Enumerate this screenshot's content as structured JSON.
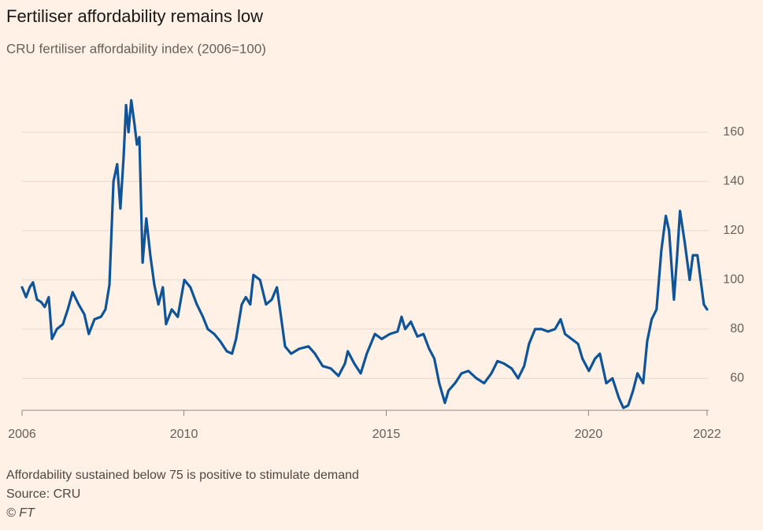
{
  "chart_data": {
    "type": "line",
    "title": "Fertiliser affordability remains low",
    "subtitle": "CRU fertiliser affordability index (2006=100)",
    "notes": [
      "Affordability sustained below 75 is positive to stimulate demand",
      "Source: CRU",
      "© FT"
    ],
    "xlim": [
      2006,
      2022.93
    ],
    "xticks": [
      2006,
      2010,
      2015,
      2020,
      {
        "value": 2022.93,
        "label": "2022"
      }
    ],
    "ylim": [
      47,
      175
    ],
    "yticks": [
      60,
      80,
      100,
      120,
      140,
      160
    ],
    "grid": true,
    "series": [
      {
        "name": "CRU fertiliser affordability index",
        "color": "#0f5499",
        "x": [
          2006.0,
          2006.1,
          2006.19,
          2006.27,
          2006.37,
          2006.47,
          2006.56,
          2006.66,
          2006.74,
          2006.86,
          2007.01,
          2007.13,
          2007.25,
          2007.4,
          2007.54,
          2007.65,
          2007.79,
          2007.95,
          2008.06,
          2008.16,
          2008.26,
          2008.35,
          2008.43,
          2008.51,
          2008.57,
          2008.63,
          2008.7,
          2008.78,
          2008.84,
          2008.9,
          2008.98,
          2009.07,
          2009.17,
          2009.27,
          2009.37,
          2009.48,
          2009.56,
          2009.7,
          2009.85,
          2010.01,
          2010.16,
          2010.32,
          2010.47,
          2010.59,
          2010.75,
          2010.9,
          2011.06,
          2011.19,
          2011.29,
          2011.43,
          2011.53,
          2011.64,
          2011.72,
          2011.88,
          2012.03,
          2012.17,
          2012.3,
          2012.4,
          2012.5,
          2012.65,
          2012.85,
          2013.08,
          2013.24,
          2013.43,
          2013.63,
          2013.82,
          2013.98,
          2014.05,
          2014.21,
          2014.37,
          2014.52,
          2014.72,
          2014.89,
          2015.09,
          2015.28,
          2015.38,
          2015.47,
          2015.61,
          2015.77,
          2015.92,
          2016.06,
          2016.19,
          2016.31,
          2016.45,
          2016.54,
          2016.7,
          2016.86,
          2017.03,
          2017.23,
          2017.42,
          2017.6,
          2017.75,
          2017.91,
          2018.1,
          2018.26,
          2018.41,
          2018.53,
          2018.68,
          2018.84,
          2019.0,
          2019.17,
          2019.31,
          2019.42,
          2019.58,
          2019.74,
          2019.85,
          2020.01,
          2020.16,
          2020.28,
          2020.44,
          2020.59,
          2020.75,
          2020.86,
          2020.98,
          2021.1,
          2021.21,
          2021.35,
          2021.45,
          2021.56,
          2021.68,
          2021.8,
          2021.91,
          2021.99,
          2022.11,
          2022.19,
          2022.26,
          2022.38,
          2022.5,
          2022.58,
          2022.69,
          2022.77,
          2022.85,
          2022.93
        ],
        "values": [
          97,
          93,
          97,
          99,
          92,
          91,
          89,
          93,
          76,
          80,
          82,
          88,
          95,
          90,
          86,
          78,
          84,
          85,
          88,
          98,
          140,
          147,
          129,
          150,
          171,
          160,
          173,
          163,
          155,
          158,
          107,
          125,
          110,
          98,
          90,
          97,
          82,
          88,
          85,
          100,
          97,
          90,
          85,
          80,
          78,
          75,
          71,
          70,
          76,
          90,
          93,
          90,
          102,
          100,
          90,
          92,
          97,
          85,
          73,
          70,
          72,
          73,
          70,
          65,
          64,
          61,
          66,
          71,
          66,
          62,
          70,
          78,
          76,
          78,
          79,
          85,
          80,
          83,
          77,
          78,
          72,
          68,
          58,
          50,
          55,
          58,
          62,
          63,
          60,
          58,
          62,
          67,
          66,
          64,
          60,
          65,
          74,
          80,
          80,
          79,
          80,
          84,
          78,
          76,
          74,
          68,
          63,
          68,
          70,
          58,
          60,
          52,
          48,
          49,
          55,
          62,
          58,
          75,
          84,
          88,
          112,
          126,
          120,
          92,
          110,
          128,
          115,
          100,
          110,
          110,
          100,
          90,
          88
        ]
      }
    ]
  }
}
